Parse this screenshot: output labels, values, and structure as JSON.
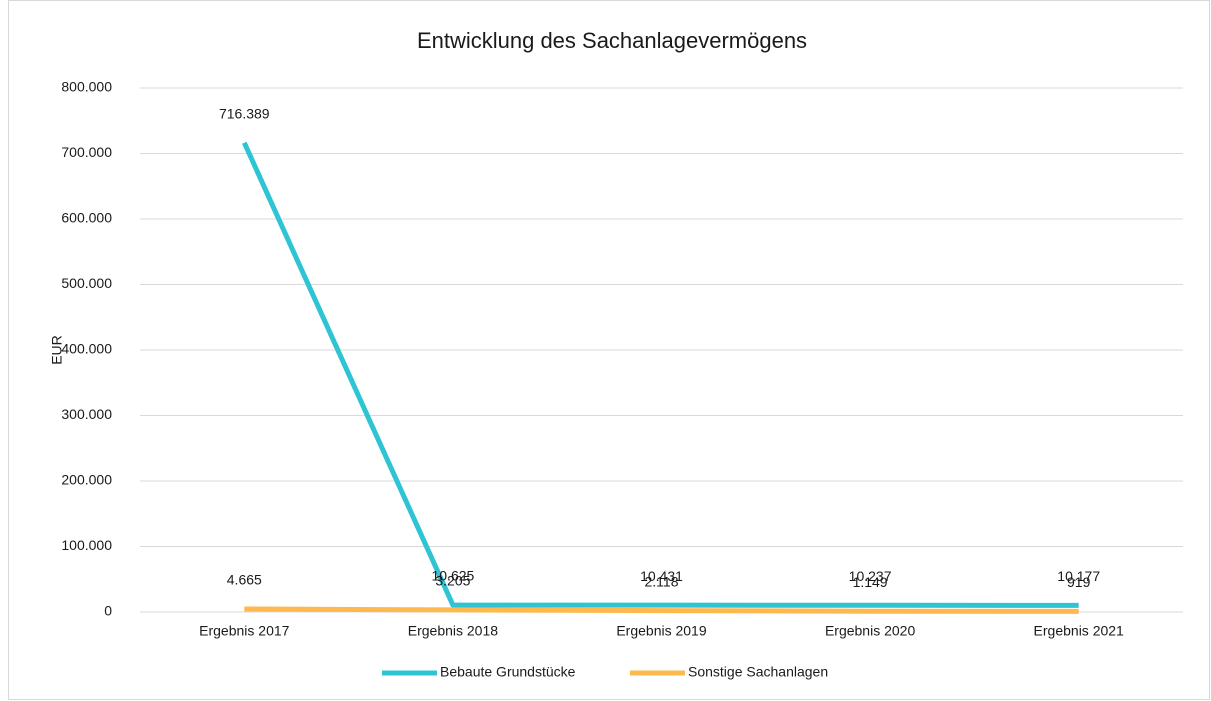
{
  "chart_data": {
    "type": "line",
    "title": "Entwicklung des Sachanlagevermögens",
    "y_label": "EUR",
    "categories": [
      "Ergebnis 2017",
      "Ergebnis 2018",
      "Ergebnis 2019",
      "Ergebnis 2020",
      "Ergebnis 2021"
    ],
    "series": [
      {
        "name": "Bebaute Grundstücke",
        "color": "#2ec4d4",
        "values": [
          716389,
          10625,
          10431,
          10237,
          10177
        ],
        "value_labels": [
          "716.389",
          "10.625",
          "10.431",
          "10.237",
          "10.177"
        ]
      },
      {
        "name": "Sonstige Sachanlagen",
        "color": "#fdb94e",
        "values": [
          4665,
          3205,
          2118,
          1149,
          919
        ],
        "value_labels": [
          "4.665",
          "3.205",
          "2.118",
          "1.149",
          "919"
        ]
      }
    ],
    "ylim": [
      0,
      800000
    ],
    "yticks": [
      0,
      {
        "value": 100000,
        "label": "100.000"
      },
      {
        "value": 200000,
        "label": "200.000"
      },
      {
        "value": 300000,
        "label": "300.000"
      },
      {
        "value": 400000,
        "label": "400.000"
      },
      {
        "value": 500000,
        "label": "500.000"
      },
      {
        "value": 600000,
        "label": "600.000"
      },
      {
        "value": 700000,
        "label": "700.000"
      },
      {
        "value": 800000,
        "label": "800.000"
      }
    ],
    "grid": true,
    "legend": "bottom"
  }
}
